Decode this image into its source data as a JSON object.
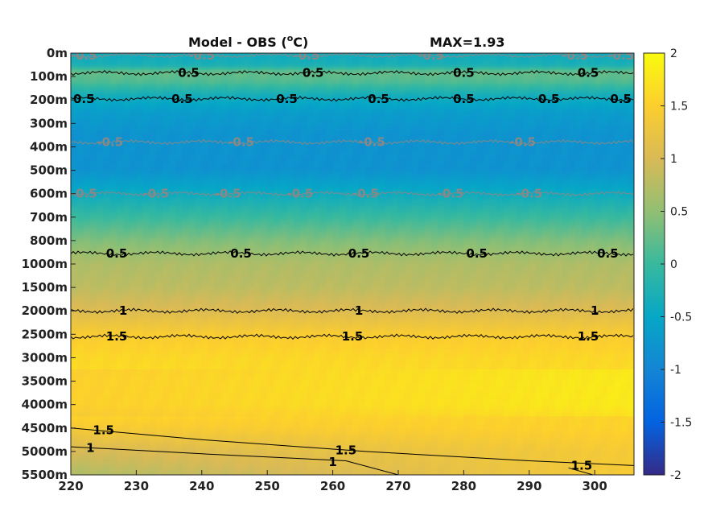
{
  "chart_data": {
    "type": "heatmap",
    "title": "Model - OBS (",
    "title_unit": "C)",
    "title_superscript": "o",
    "max_label": "MAX=1.93",
    "x_ticks": [
      "220",
      "230",
      "240",
      "250",
      "260",
      "270",
      "280",
      "290",
      "300"
    ],
    "x_range": [
      220,
      306
    ],
    "y_ticks": [
      "0m",
      "100m",
      "200m",
      "300m",
      "400m",
      "500m",
      "600m",
      "700m",
      "800m",
      "1000m",
      "1500m",
      "2000m",
      "2500m",
      "3000m",
      "3500m",
      "4000m",
      "4500m",
      "5000m",
      "5500m"
    ],
    "colorbar": {
      "range": [
        -2,
        2
      ],
      "ticks": [
        "2",
        "1.5",
        "1",
        "0.5",
        "0",
        "-0.5",
        "-1",
        "-1.5",
        "-2"
      ],
      "colormap": "parula"
    },
    "depth_profile": [
      {
        "level": 0,
        "value": -0.4
      },
      {
        "level": 0.5,
        "value": -0.3
      },
      {
        "level": 0.8,
        "value": 0.25
      },
      {
        "level": 1.2,
        "value": 0.15
      },
      {
        "level": 1.8,
        "value": -0.35
      },
      {
        "level": 2.5,
        "value": -0.65
      },
      {
        "level": 3.5,
        "value": -0.8
      },
      {
        "level": 5.0,
        "value": -0.8
      },
      {
        "level": 5.8,
        "value": -0.5
      },
      {
        "level": 7.0,
        "value": 0.0
      },
      {
        "level": 8.0,
        "value": 0.4
      },
      {
        "level": 9.0,
        "value": 0.7
      },
      {
        "level": 10.0,
        "value": 0.8
      },
      {
        "level": 11.0,
        "value": 1.05
      },
      {
        "level": 12.0,
        "value": 1.45
      },
      {
        "level": 13.0,
        "value": 1.6
      },
      {
        "level": 14.0,
        "value": 1.65
      },
      {
        "level": 15.0,
        "value": 1.65
      },
      {
        "level": 16.0,
        "value": 1.45
      },
      {
        "level": 17.0,
        "value": 1.1
      },
      {
        "level": 18.0,
        "value": 0.9
      }
    ],
    "contours": [
      {
        "level": "-0.5",
        "depth": 0.1,
        "color": "#888888",
        "labels": [
          [
            222,
            "-0.5"
          ],
          [
            240,
            "-0.5"
          ],
          [
            256,
            "-0.5"
          ],
          [
            275,
            "-0.5"
          ],
          [
            297,
            "-0.5"
          ],
          [
            304,
            "-0.5"
          ]
        ]
      },
      {
        "level": "0.5",
        "depth": 0.85,
        "color": "#000000",
        "labels": [
          [
            238,
            "0.5"
          ],
          [
            257,
            "0.5"
          ],
          [
            280,
            "0.5"
          ],
          [
            299,
            "0.5"
          ]
        ]
      },
      {
        "level": "0.5",
        "depth": 1.95,
        "color": "#000000",
        "labels": [
          [
            222,
            "0.5"
          ],
          [
            237,
            "0.5"
          ],
          [
            253,
            "0.5"
          ],
          [
            267,
            "0.5"
          ],
          [
            280,
            "0.5"
          ],
          [
            293,
            "0.5"
          ],
          [
            304,
            "0.5"
          ]
        ]
      },
      {
        "level": "-0.5",
        "depth": 3.8,
        "color": "#888888",
        "labels": [
          [
            226,
            "-0.5"
          ],
          [
            246,
            "-0.5"
          ],
          [
            266,
            "-0.5"
          ],
          [
            289,
            "-0.5"
          ]
        ]
      },
      {
        "level": "-0.5",
        "depth": 6.0,
        "color": "#888888",
        "labels": [
          [
            222,
            "-0.5"
          ],
          [
            233,
            "-0.5"
          ],
          [
            244,
            "-0.5"
          ],
          [
            255,
            "-0.5"
          ],
          [
            265,
            "-0.5"
          ],
          [
            278,
            "-0.5"
          ],
          [
            290,
            "-0.5"
          ]
        ]
      },
      {
        "level": "0.5",
        "depth": 8.55,
        "color": "#000000",
        "labels": [
          [
            227,
            "0.5"
          ],
          [
            246,
            "0.5"
          ],
          [
            264,
            "0.5"
          ],
          [
            282,
            "0.5"
          ],
          [
            302,
            "0.5"
          ]
        ]
      },
      {
        "level": "1",
        "depth": 11.0,
        "color": "#000000",
        "labels": [
          [
            228,
            "1"
          ],
          [
            264,
            "1"
          ],
          [
            300,
            "1"
          ]
        ]
      },
      {
        "level": "1.5",
        "depth": 12.1,
        "color": "#000000",
        "labels": [
          [
            227,
            "1.5"
          ],
          [
            263,
            "1.5"
          ],
          [
            299,
            "1.5"
          ]
        ]
      }
    ]
  }
}
